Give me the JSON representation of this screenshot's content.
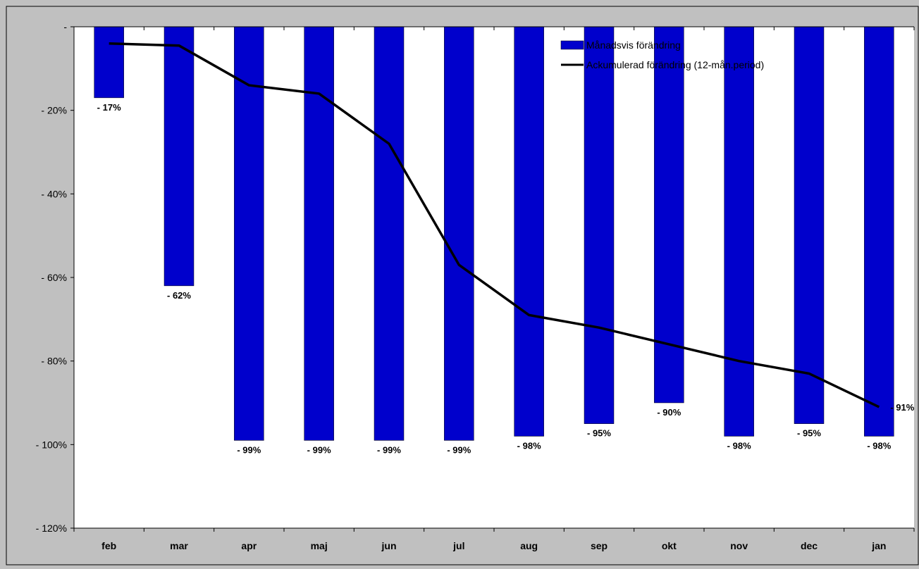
{
  "chart_data": {
    "type": "bar",
    "categories": [
      "feb",
      "mar",
      "apr",
      "maj",
      "jun",
      "jul",
      "aug",
      "sep",
      "okt",
      "nov",
      "dec",
      "jan"
    ],
    "series": [
      {
        "name": "Månadsvis förändring",
        "kind": "bar",
        "color": "#0000cc",
        "values": [
          -17,
          -62,
          -99,
          -99,
          -99,
          -99,
          -98,
          -95,
          -90,
          -98,
          -95,
          -98
        ],
        "labels": [
          "- 17%",
          "- 62%",
          "- 99%",
          "- 99%",
          "- 99%",
          "- 99%",
          "- 98%",
          "- 95%",
          "- 90%",
          "- 98%",
          "- 95%",
          "- 98%"
        ]
      },
      {
        "name": "Ackumulerad förändring (12-mån.period)",
        "kind": "line",
        "color": "#000000",
        "values": [
          -4,
          -4.5,
          -14,
          -16,
          -28,
          -57,
          -69,
          -72,
          -76,
          -80,
          -83,
          -91
        ],
        "end_label": "- 91%"
      }
    ],
    "ylim": [
      -120,
      0
    ],
    "yticks": [
      0,
      -20,
      -40,
      -60,
      -80,
      -100,
      -120
    ],
    "ytick_labels": [
      "-",
      "- 20%",
      "- 40%",
      "- 60%",
      "- 80%",
      "- 100%",
      "- 120%"
    ],
    "grid": false,
    "legend_position": "top-right",
    "background_color": "#c0c0c0",
    "plot_background_color": "#ffffff"
  }
}
